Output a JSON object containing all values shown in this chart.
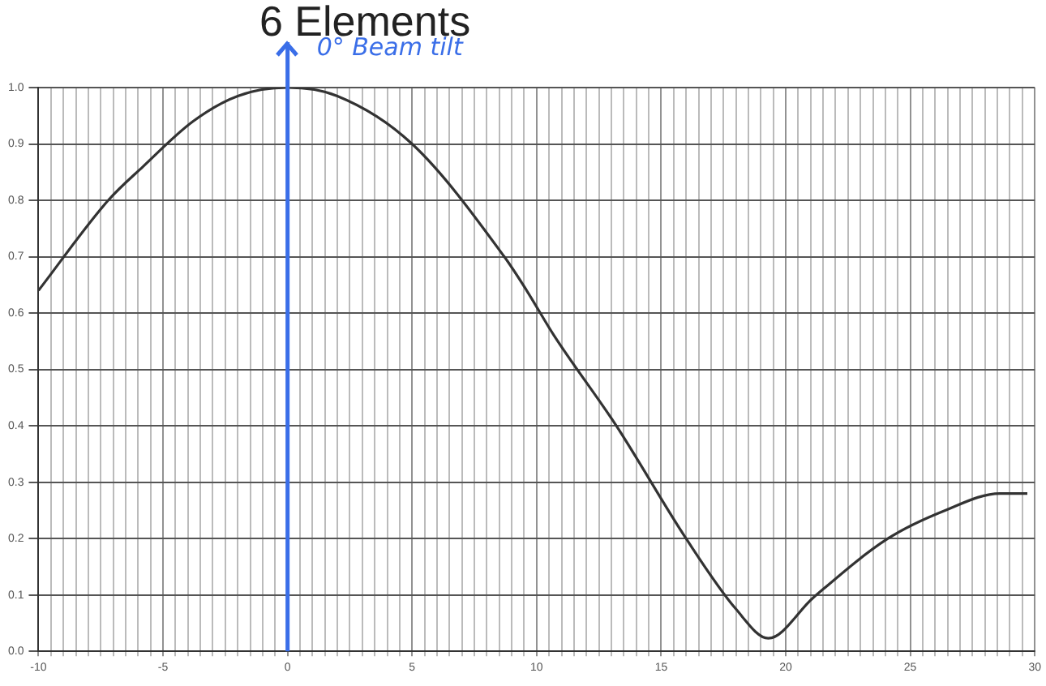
{
  "chart_data": {
    "type": "line",
    "title": "6 Elements",
    "x": [
      -10,
      -7.2,
      -5.8,
      -3.8,
      -2,
      0,
      2,
      5,
      8.7,
      9.6,
      10.7,
      13.2,
      16,
      18,
      19.3,
      21.1,
      24.1,
      26.4,
      28.6,
      29.7
    ],
    "series": [
      {
        "color": "#333333",
        "values": [
          0.64,
          0.8,
          0.86,
          0.94,
          0.985,
          1.0,
          0.985,
          0.9,
          0.7,
          0.64,
          0.56,
          0.4,
          0.2,
          0.075,
          0.023,
          0.095,
          0.2,
          0.25,
          0.28,
          0.28
        ]
      }
    ],
    "xlim": [
      -10,
      30
    ],
    "xticks": [
      -10,
      {
        "value": -9.5,
        "label": null
      },
      {
        "value": -9,
        "label": null
      },
      {
        "value": -8.5,
        "label": null
      },
      {
        "value": -8,
        "label": null
      },
      {
        "value": -7.5,
        "label": null
      },
      {
        "value": -7,
        "label": null
      },
      {
        "value": -6.5,
        "label": null
      },
      {
        "value": -6,
        "label": null
      },
      {
        "value": -5.5,
        "label": null
      },
      -5,
      {
        "value": -4.5,
        "label": null
      },
      {
        "value": -4,
        "label": null
      },
      {
        "value": -3.5,
        "label": null
      },
      {
        "value": -3,
        "label": null
      },
      {
        "value": -2.5,
        "label": null
      },
      {
        "value": -2,
        "label": null
      },
      {
        "value": -1.5,
        "label": null
      },
      {
        "value": -1,
        "label": null
      },
      {
        "value": -0.5,
        "label": null
      },
      0,
      {
        "value": 0.5,
        "label": null
      },
      {
        "value": 1,
        "label": null
      },
      {
        "value": 1.5,
        "label": null
      },
      {
        "value": 2,
        "label": null
      },
      {
        "value": 2.5,
        "label": null
      },
      {
        "value": 3,
        "label": null
      },
      {
        "value": 3.5,
        "label": null
      },
      {
        "value": 4,
        "label": null
      },
      {
        "value": 4.5,
        "label": null
      },
      5,
      {
        "value": 5.5,
        "label": null
      },
      {
        "value": 6,
        "label": null
      },
      {
        "value": 6.5,
        "label": null
      },
      {
        "value": 7,
        "label": null
      },
      {
        "value": 7.5,
        "label": null
      },
      {
        "value": 8,
        "label": null
      },
      {
        "value": 8.5,
        "label": null
      },
      {
        "value": 9,
        "label": null
      },
      {
        "value": 9.5,
        "label": null
      },
      10,
      {
        "value": 10.5,
        "label": null
      },
      {
        "value": 11,
        "label": null
      },
      {
        "value": 11.5,
        "label": null
      },
      {
        "value": 12,
        "label": null
      },
      {
        "value": 12.5,
        "label": null
      },
      {
        "value": 13,
        "label": null
      },
      {
        "value": 13.5,
        "label": null
      },
      {
        "value": 14,
        "label": null
      },
      {
        "value": 14.5,
        "label": null
      },
      15,
      {
        "value": 15.5,
        "label": null
      },
      {
        "value": 16,
        "label": null
      },
      {
        "value": 16.5,
        "label": null
      },
      {
        "value": 17,
        "label": null
      },
      {
        "value": 17.5,
        "label": null
      },
      {
        "value": 18,
        "label": null
      },
      {
        "value": 18.5,
        "label": null
      },
      {
        "value": 19,
        "label": null
      },
      {
        "value": 19.5,
        "label": null
      },
      20,
      {
        "value": 20.5,
        "label": null
      },
      {
        "value": 21,
        "label": null
      },
      {
        "value": 21.5,
        "label": null
      },
      {
        "value": 22,
        "label": null
      },
      {
        "value": 22.5,
        "label": null
      },
      {
        "value": 23,
        "label": null
      },
      {
        "value": 23.5,
        "label": null
      },
      {
        "value": 24,
        "label": null
      },
      {
        "value": 24.5,
        "label": null
      },
      25,
      {
        "value": 25.5,
        "label": null
      },
      {
        "value": 26,
        "label": null
      },
      {
        "value": 26.5,
        "label": null
      },
      {
        "value": 27,
        "label": null
      },
      {
        "value": 27.5,
        "label": null
      },
      {
        "value": 28,
        "label": null
      },
      {
        "value": 28.5,
        "label": null
      },
      {
        "value": 29,
        "label": null
      },
      {
        "value": 29.5,
        "label": null
      },
      30
    ],
    "ylim": [
      0,
      1
    ],
    "yticks": [
      {
        "value": 0,
        "label": "0.0"
      },
      0.1,
      0.2,
      0.3,
      0.4,
      0.5,
      0.6,
      0.7,
      0.8,
      0.9,
      {
        "value": 1,
        "label": "1.0"
      }
    ],
    "grid": true,
    "legend": false,
    "marker": "none",
    "line_style": "solid",
    "ref_lines": [
      {
        "axis": "x",
        "value": 0,
        "label": "0° Beam tilt",
        "color": "#3a6ee8"
      }
    ]
  }
}
